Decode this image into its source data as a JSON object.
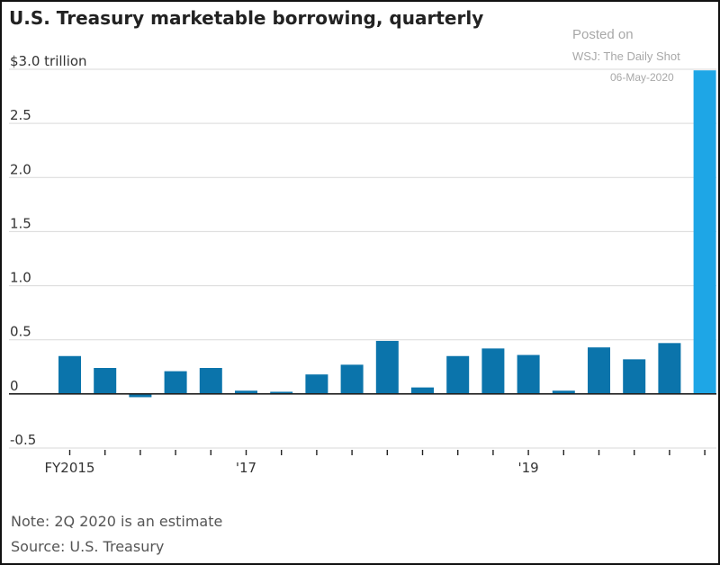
{
  "title": "U.S. Treasury marketable borrowing, quarterly",
  "watermark": {
    "line1": "Posted on",
    "line2": "WSJ: The Daily Shot",
    "line3": "06-May-2020"
  },
  "notes": {
    "note": "Note: 2Q 2020 is an estimate",
    "source": "Source: U.S. Treasury"
  },
  "colors": {
    "bar": "#0b74ab",
    "highlight_bar": "#1ea6e6",
    "grid": "#d9d9d9",
    "axis": "#222222"
  },
  "chart_data": {
    "type": "bar",
    "ylim": [
      -0.5,
      3.0
    ],
    "yticks": [
      {
        "value": 3.0,
        "label": "$3.0 trillion"
      },
      {
        "value": 2.5,
        "label": "2.5"
      },
      {
        "value": 2.0,
        "label": "2.0"
      },
      {
        "value": 1.5,
        "label": "1.5"
      },
      {
        "value": 1.0,
        "label": "1.0"
      },
      {
        "value": 0.5,
        "label": "0.5"
      },
      {
        "value": 0.0,
        "label": "0"
      },
      {
        "value": -0.5,
        "label": "-0.5"
      }
    ],
    "xtick_labels": [
      {
        "index": 0,
        "label": "FY2015"
      },
      {
        "index": 5,
        "label": "'17"
      },
      {
        "index": 13,
        "label": "'19"
      }
    ],
    "values": [
      0.35,
      0.24,
      -0.03,
      0.21,
      0.24,
      0.03,
      0.02,
      0.18,
      0.27,
      0.49,
      0.06,
      0.35,
      0.42,
      0.36,
      0.03,
      0.43,
      0.32,
      0.47,
      2.99
    ],
    "highlight_last": true,
    "grid": true
  }
}
